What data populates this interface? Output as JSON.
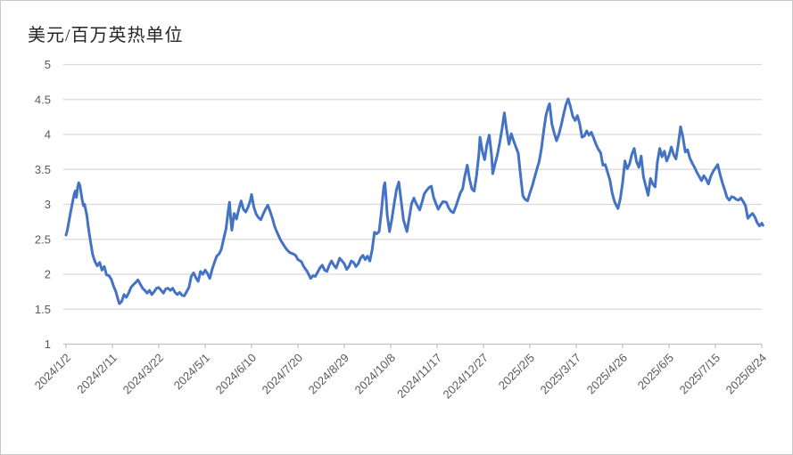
{
  "window": {
    "background": "#FFFFFF",
    "border_color": "#C9C9C9"
  },
  "colors": {
    "line": "#4472C4",
    "gridline": "#D9D9D9",
    "axis_line": "#BFBFBF",
    "tick_text": "#595959",
    "title_text": "#262626"
  },
  "chart_data": {
    "type": "line",
    "title": "美元/百万英热单位",
    "xlabel": "",
    "ylabel": "",
    "legend": "none",
    "grid": true,
    "ylim": [
      1,
      5
    ],
    "y_ticks": [
      1,
      1.5,
      2,
      2.5,
      3,
      3.5,
      4,
      4.5,
      5
    ],
    "x_unit": "days since 2024/1/2",
    "x_axis": {
      "tick_interval_days": 40,
      "tick_days": [
        0,
        40,
        80,
        120,
        160,
        200,
        240,
        280,
        320,
        360,
        400,
        440,
        480,
        520,
        560,
        600
      ],
      "tick_labels": [
        "2024/1/2",
        "2024/2/11",
        "2024/3/22",
        "2024/5/1",
        "2024/6/10",
        "2024/7/20",
        "2024/8/29",
        "2024/10/8",
        "2024/11/17",
        "2024/12/27",
        "2025/2/5",
        "2025/3/17",
        "2025/4/26",
        "2025/6/5",
        "2025/7/15",
        "2025/8/24"
      ]
    },
    "points": [
      [
        0,
        2.56
      ],
      [
        1,
        2.62
      ],
      [
        2,
        2.71
      ],
      [
        3,
        2.8
      ],
      [
        4,
        2.89
      ],
      [
        5,
        2.98
      ],
      [
        6,
        3.06
      ],
      [
        7,
        3.14
      ],
      [
        8,
        3.19
      ],
      [
        9,
        3.1
      ],
      [
        10,
        3.24
      ],
      [
        11,
        3.31
      ],
      [
        12,
        3.27
      ],
      [
        13,
        3.16
      ],
      [
        14,
        3.06
      ],
      [
        15,
        2.98
      ],
      [
        16,
        3.0
      ],
      [
        17,
        2.92
      ],
      [
        18,
        2.84
      ],
      [
        19,
        2.7
      ],
      [
        21,
        2.48
      ],
      [
        23,
        2.28
      ],
      [
        25,
        2.18
      ],
      [
        27,
        2.12
      ],
      [
        29,
        2.17
      ],
      [
        31,
        2.06
      ],
      [
        33,
        2.11
      ],
      [
        35,
        1.99
      ],
      [
        37,
        1.98
      ],
      [
        39,
        1.93
      ],
      [
        41,
        1.83
      ],
      [
        43,
        1.75
      ],
      [
        45,
        1.63
      ],
      [
        46,
        1.58
      ],
      [
        48,
        1.61
      ],
      [
        50,
        1.71
      ],
      [
        52,
        1.67
      ],
      [
        54,
        1.73
      ],
      [
        56,
        1.81
      ],
      [
        58,
        1.85
      ],
      [
        60,
        1.88
      ],
      [
        62,
        1.92
      ],
      [
        64,
        1.86
      ],
      [
        66,
        1.8
      ],
      [
        68,
        1.77
      ],
      [
        70,
        1.73
      ],
      [
        72,
        1.77
      ],
      [
        74,
        1.71
      ],
      [
        76,
        1.75
      ],
      [
        78,
        1.8
      ],
      [
        80,
        1.81
      ],
      [
        82,
        1.77
      ],
      [
        84,
        1.73
      ],
      [
        86,
        1.79
      ],
      [
        88,
        1.8
      ],
      [
        90,
        1.77
      ],
      [
        92,
        1.8
      ],
      [
        94,
        1.74
      ],
      [
        96,
        1.71
      ],
      [
        98,
        1.74
      ],
      [
        100,
        1.7
      ],
      [
        102,
        1.69
      ],
      [
        104,
        1.75
      ],
      [
        106,
        1.81
      ],
      [
        108,
        1.97
      ],
      [
        110,
        2.02
      ],
      [
        112,
        1.95
      ],
      [
        114,
        1.9
      ],
      [
        116,
        2.04
      ],
      [
        118,
        2.0
      ],
      [
        120,
        2.06
      ],
      [
        122,
        2.01
      ],
      [
        124,
        1.94
      ],
      [
        126,
        2.07
      ],
      [
        128,
        2.17
      ],
      [
        130,
        2.26
      ],
      [
        132,
        2.29
      ],
      [
        134,
        2.36
      ],
      [
        136,
        2.51
      ],
      [
        138,
        2.65
      ],
      [
        140,
        2.92
      ],
      [
        141,
        3.03
      ],
      [
        142,
        2.81
      ],
      [
        143,
        2.63
      ],
      [
        145,
        2.87
      ],
      [
        147,
        2.79
      ],
      [
        149,
        2.93
      ],
      [
        151,
        3.05
      ],
      [
        153,
        2.93
      ],
      [
        155,
        2.89
      ],
      [
        157,
        2.96
      ],
      [
        159,
        3.06
      ],
      [
        160,
        3.14
      ],
      [
        162,
        2.96
      ],
      [
        164,
        2.86
      ],
      [
        166,
        2.81
      ],
      [
        168,
        2.78
      ],
      [
        170,
        2.86
      ],
      [
        172,
        2.93
      ],
      [
        174,
        2.99
      ],
      [
        176,
        2.9
      ],
      [
        178,
        2.8
      ],
      [
        180,
        2.68
      ],
      [
        182,
        2.6
      ],
      [
        185,
        2.49
      ],
      [
        188,
        2.41
      ],
      [
        190,
        2.36
      ],
      [
        193,
        2.31
      ],
      [
        196,
        2.29
      ],
      [
        198,
        2.27
      ],
      [
        200,
        2.21
      ],
      [
        203,
        2.18
      ],
      [
        205,
        2.11
      ],
      [
        208,
        2.04
      ],
      [
        211,
        1.94
      ],
      [
        213,
        1.98
      ],
      [
        215,
        1.97
      ],
      [
        217,
        2.03
      ],
      [
        219,
        2.09
      ],
      [
        221,
        2.13
      ],
      [
        223,
        2.06
      ],
      [
        225,
        2.04
      ],
      [
        227,
        2.13
      ],
      [
        229,
        2.19
      ],
      [
        231,
        2.13
      ],
      [
        233,
        2.09
      ],
      [
        236,
        2.23
      ],
      [
        238,
        2.19
      ],
      [
        240,
        2.15
      ],
      [
        242,
        2.07
      ],
      [
        244,
        2.11
      ],
      [
        246,
        2.19
      ],
      [
        248,
        2.17
      ],
      [
        250,
        2.11
      ],
      [
        252,
        2.15
      ],
      [
        254,
        2.23
      ],
      [
        256,
        2.27
      ],
      [
        258,
        2.21
      ],
      [
        260,
        2.26
      ],
      [
        262,
        2.19
      ],
      [
        264,
        2.35
      ],
      [
        266,
        2.6
      ],
      [
        268,
        2.58
      ],
      [
        270,
        2.61
      ],
      [
        272,
        2.9
      ],
      [
        274,
        3.25
      ],
      [
        275,
        3.31
      ],
      [
        276,
        3.1
      ],
      [
        277,
        2.85
      ],
      [
        279,
        2.61
      ],
      [
        281,
        2.79
      ],
      [
        283,
        3.01
      ],
      [
        285,
        3.21
      ],
      [
        287,
        3.32
      ],
      [
        289,
        3.05
      ],
      [
        291,
        2.78
      ],
      [
        294,
        2.61
      ],
      [
        296,
        2.81
      ],
      [
        298,
        3.01
      ],
      [
        300,
        3.09
      ],
      [
        302,
        3.01
      ],
      [
        305,
        2.92
      ],
      [
        307,
        3.03
      ],
      [
        309,
        3.15
      ],
      [
        311,
        3.2
      ],
      [
        313,
        3.24
      ],
      [
        315,
        3.26
      ],
      [
        317,
        3.1
      ],
      [
        319,
        3.01
      ],
      [
        321,
        2.93
      ],
      [
        323,
        2.99
      ],
      [
        325,
        3.04
      ],
      [
        328,
        3.03
      ],
      [
        330,
        2.95
      ],
      [
        332,
        2.9
      ],
      [
        334,
        2.88
      ],
      [
        336,
        2.96
      ],
      [
        338,
        3.06
      ],
      [
        340,
        3.16
      ],
      [
        342,
        3.22
      ],
      [
        344,
        3.41
      ],
      [
        346,
        3.56
      ],
      [
        348,
        3.36
      ],
      [
        350,
        3.22
      ],
      [
        352,
        3.19
      ],
      [
        354,
        3.41
      ],
      [
        356,
        3.71
      ],
      [
        357,
        3.96
      ],
      [
        359,
        3.76
      ],
      [
        361,
        3.64
      ],
      [
        363,
        3.86
      ],
      [
        365,
        3.99
      ],
      [
        367,
        3.7
      ],
      [
        368,
        3.44
      ],
      [
        370,
        3.58
      ],
      [
        372,
        3.71
      ],
      [
        374,
        3.88
      ],
      [
        376,
        4.08
      ],
      [
        378,
        4.31
      ],
      [
        380,
        4.06
      ],
      [
        382,
        3.86
      ],
      [
        384,
        4.01
      ],
      [
        386,
        3.91
      ],
      [
        388,
        3.82
      ],
      [
        390,
        3.73
      ],
      [
        392,
        3.41
      ],
      [
        394,
        3.12
      ],
      [
        396,
        3.07
      ],
      [
        398,
        3.05
      ],
      [
        400,
        3.16
      ],
      [
        402,
        3.26
      ],
      [
        404,
        3.38
      ],
      [
        406,
        3.5
      ],
      [
        408,
        3.61
      ],
      [
        410,
        3.8
      ],
      [
        412,
        4.06
      ],
      [
        414,
        4.28
      ],
      [
        416,
        4.4
      ],
      [
        417,
        4.44
      ],
      [
        419,
        4.15
      ],
      [
        421,
        4.02
      ],
      [
        423,
        3.91
      ],
      [
        425,
        4.0
      ],
      [
        427,
        4.13
      ],
      [
        429,
        4.28
      ],
      [
        431,
        4.42
      ],
      [
        433,
        4.51
      ],
      [
        435,
        4.4
      ],
      [
        437,
        4.26
      ],
      [
        439,
        4.2
      ],
      [
        441,
        4.27
      ],
      [
        443,
        4.15
      ],
      [
        445,
        3.96
      ],
      [
        447,
        3.98
      ],
      [
        449,
        4.05
      ],
      [
        451,
        3.99
      ],
      [
        453,
        4.03
      ],
      [
        455,
        3.95
      ],
      [
        457,
        3.86
      ],
      [
        459,
        3.79
      ],
      [
        461,
        3.74
      ],
      [
        463,
        3.56
      ],
      [
        465,
        3.57
      ],
      [
        467,
        3.46
      ],
      [
        469,
        3.35
      ],
      [
        471,
        3.16
      ],
      [
        473,
        3.04
      ],
      [
        475,
        2.97
      ],
      [
        476,
        2.94
      ],
      [
        478,
        3.08
      ],
      [
        480,
        3.31
      ],
      [
        482,
        3.62
      ],
      [
        484,
        3.51
      ],
      [
        486,
        3.58
      ],
      [
        488,
        3.72
      ],
      [
        490,
        3.8
      ],
      [
        492,
        3.61
      ],
      [
        494,
        3.53
      ],
      [
        496,
        3.69
      ],
      [
        498,
        3.39
      ],
      [
        500,
        3.26
      ],
      [
        502,
        3.13
      ],
      [
        504,
        3.37
      ],
      [
        506,
        3.29
      ],
      [
        508,
        3.25
      ],
      [
        510,
        3.61
      ],
      [
        512,
        3.8
      ],
      [
        514,
        3.68
      ],
      [
        516,
        3.76
      ],
      [
        518,
        3.62
      ],
      [
        520,
        3.7
      ],
      [
        522,
        3.82
      ],
      [
        524,
        3.71
      ],
      [
        526,
        3.65
      ],
      [
        528,
        3.86
      ],
      [
        530,
        4.11
      ],
      [
        532,
        3.96
      ],
      [
        534,
        3.75
      ],
      [
        536,
        3.78
      ],
      [
        538,
        3.66
      ],
      [
        540,
        3.59
      ],
      [
        542,
        3.53
      ],
      [
        544,
        3.46
      ],
      [
        546,
        3.4
      ],
      [
        548,
        3.34
      ],
      [
        550,
        3.41
      ],
      [
        552,
        3.36
      ],
      [
        554,
        3.29
      ],
      [
        556,
        3.4
      ],
      [
        558,
        3.47
      ],
      [
        560,
        3.52
      ],
      [
        562,
        3.57
      ],
      [
        564,
        3.43
      ],
      [
        566,
        3.31
      ],
      [
        568,
        3.21
      ],
      [
        570,
        3.1
      ],
      [
        572,
        3.06
      ],
      [
        574,
        3.11
      ],
      [
        576,
        3.1
      ],
      [
        578,
        3.07
      ],
      [
        580,
        3.06
      ],
      [
        582,
        3.09
      ],
      [
        584,
        3.04
      ],
      [
        586,
        2.98
      ],
      [
        588,
        2.8
      ],
      [
        590,
        2.84
      ],
      [
        592,
        2.87
      ],
      [
        594,
        2.82
      ],
      [
        596,
        2.74
      ],
      [
        598,
        2.69
      ],
      [
        600,
        2.73
      ],
      [
        601,
        2.7
      ]
    ]
  }
}
